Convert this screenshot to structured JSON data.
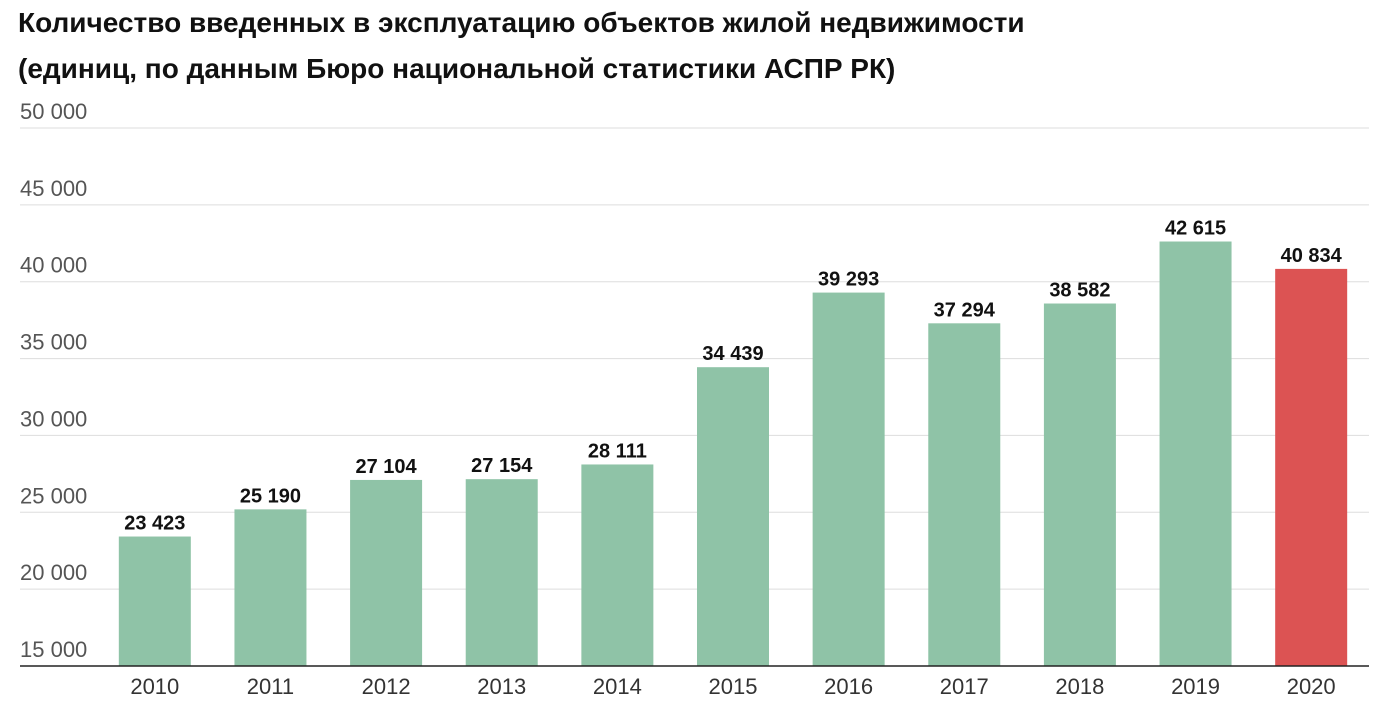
{
  "chart_data": {
    "type": "bar",
    "title": "Количество введенных в эксплуатацию объектов жилой недвижимости",
    "subtitle": "(единиц, по данным Бюро национальной статистики АСПР РК)",
    "xlabel": "",
    "ylabel": "",
    "categories": [
      "2010",
      "2011",
      "2012",
      "2013",
      "2014",
      "2015",
      "2016",
      "2017",
      "2018",
      "2019",
      "2020"
    ],
    "values": [
      23423,
      25190,
      27104,
      27154,
      28111,
      34439,
      39293,
      37294,
      38582,
      42615,
      40834
    ],
    "value_labels": [
      "23 423",
      "25 190",
      "27 104",
      "27 154",
      "28 111",
      "34 439",
      "39 293",
      "37 294",
      "38 582",
      "42 615",
      "40 834"
    ],
    "ylim": [
      15000,
      50000
    ],
    "yticks": [
      50000,
      45000,
      40000,
      35000,
      30000,
      25000,
      20000,
      15000
    ],
    "ytick_labels": [
      "50 000",
      "45 000",
      "40 000",
      "35 000",
      "30 000",
      "25 000",
      "20 000",
      "15 000"
    ],
    "grid": true,
    "colors": [
      "#8fc3a7",
      "#8fc3a7",
      "#8fc3a7",
      "#8fc3a7",
      "#8fc3a7",
      "#8fc3a7",
      "#8fc3a7",
      "#8fc3a7",
      "#8fc3a7",
      "#8fc3a7",
      "#dc5353"
    ]
  }
}
